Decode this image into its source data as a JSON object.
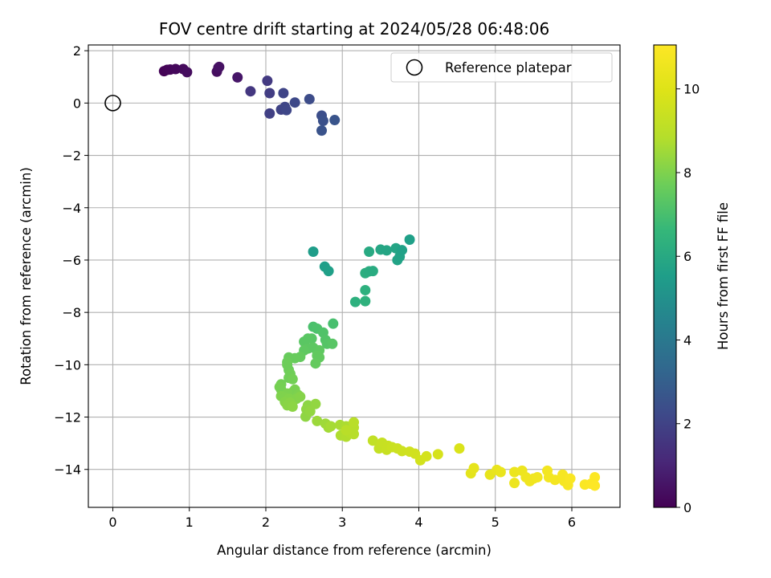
{
  "chart_data": {
    "type": "scatter",
    "title": "FOV centre drift starting at 2024/05/28 06:48:06",
    "xlabel": "Angular distance from reference (arcmin)",
    "ylabel": "Rotation from reference (arcmin)",
    "xlim": [
      -0.32,
      6.63
    ],
    "ylim": [
      -15.45,
      2.22
    ],
    "xticks": [
      0,
      1,
      2,
      3,
      4,
      5,
      6
    ],
    "xtick_labels": [
      "0",
      "1",
      "2",
      "3",
      "4",
      "5",
      "6"
    ],
    "yticks": [
      2,
      0,
      -2,
      -4,
      -6,
      -8,
      -10,
      -12,
      -14
    ],
    "ytick_labels": [
      "2",
      "0",
      "−2",
      "−4",
      "−6",
      "−8",
      "−10",
      "−12",
      "−14"
    ],
    "grid": true,
    "legend": {
      "position": "upper right",
      "entries": [
        "Reference platepar"
      ]
    },
    "colorbar": {
      "label": "Hours from first FF file",
      "colormap": "viridis",
      "range": [
        0,
        11.05
      ],
      "ticks": [
        0,
        2,
        4,
        6,
        8,
        10
      ],
      "tick_labels": [
        "0",
        "2",
        "4",
        "6",
        "8",
        "10"
      ]
    },
    "reference_point": {
      "x": 0,
      "y": 0,
      "label": "Reference platepar"
    },
    "points": [
      {
        "x": 0.67,
        "y": 1.22,
        "h": 0.05
      },
      {
        "x": 0.71,
        "y": 1.27,
        "h": 0.1
      },
      {
        "x": 0.75,
        "y": 1.28,
        "h": 0.15
      },
      {
        "x": 0.82,
        "y": 1.3,
        "h": 0.2
      },
      {
        "x": 0.92,
        "y": 1.3,
        "h": 0.25
      },
      {
        "x": 0.97,
        "y": 1.18,
        "h": 0.3
      },
      {
        "x": 1.36,
        "y": 1.2,
        "h": 0.35
      },
      {
        "x": 1.38,
        "y": 1.35,
        "h": 0.4
      },
      {
        "x": 1.39,
        "y": 1.38,
        "h": 0.45
      },
      {
        "x": 1.63,
        "y": 0.98,
        "h": 0.6
      },
      {
        "x": 1.8,
        "y": 0.45,
        "h": 1.6
      },
      {
        "x": 2.02,
        "y": 0.85,
        "h": 1.7
      },
      {
        "x": 2.05,
        "y": 0.38,
        "h": 1.8
      },
      {
        "x": 2.05,
        "y": -0.4,
        "h": 1.9
      },
      {
        "x": 2.2,
        "y": -0.25,
        "h": 2.0
      },
      {
        "x": 2.23,
        "y": 0.38,
        "h": 2.05
      },
      {
        "x": 2.25,
        "y": -0.15,
        "h": 2.1
      },
      {
        "x": 2.27,
        "y": -0.27,
        "h": 2.15
      },
      {
        "x": 2.38,
        "y": 0.02,
        "h": 2.2
      },
      {
        "x": 2.57,
        "y": 0.15,
        "h": 2.3
      },
      {
        "x": 2.73,
        "y": -0.48,
        "h": 2.4
      },
      {
        "x": 2.75,
        "y": -0.68,
        "h": 2.5
      },
      {
        "x": 2.73,
        "y": -1.05,
        "h": 2.55
      },
      {
        "x": 2.9,
        "y": -0.65,
        "h": 2.6
      },
      {
        "x": 2.62,
        "y": -5.68,
        "h": 5.5
      },
      {
        "x": 2.77,
        "y": -6.25,
        "h": 5.55
      },
      {
        "x": 2.82,
        "y": -6.42,
        "h": 5.6
      },
      {
        "x": 3.17,
        "y": -7.6,
        "h": 6.3
      },
      {
        "x": 3.3,
        "y": -7.57,
        "h": 6.35
      },
      {
        "x": 3.3,
        "y": -7.15,
        "h": 6.3
      },
      {
        "x": 3.3,
        "y": -6.5,
        "h": 6.2
      },
      {
        "x": 3.35,
        "y": -6.43,
        "h": 6.15
      },
      {
        "x": 3.4,
        "y": -6.42,
        "h": 6.1
      },
      {
        "x": 3.35,
        "y": -5.68,
        "h": 6.0
      },
      {
        "x": 3.5,
        "y": -5.6,
        "h": 5.9
      },
      {
        "x": 3.58,
        "y": -5.63,
        "h": 5.85
      },
      {
        "x": 3.7,
        "y": -5.55,
        "h": 5.8
      },
      {
        "x": 3.72,
        "y": -6.0,
        "h": 5.75
      },
      {
        "x": 3.75,
        "y": -5.87,
        "h": 5.7
      },
      {
        "x": 3.78,
        "y": -5.62,
        "h": 5.65
      },
      {
        "x": 3.88,
        "y": -5.22,
        "h": 5.6
      },
      {
        "x": 2.88,
        "y": -8.43,
        "h": 7.0
      },
      {
        "x": 2.62,
        "y": -8.55,
        "h": 7.05
      },
      {
        "x": 2.67,
        "y": -8.62,
        "h": 7.1
      },
      {
        "x": 2.75,
        "y": -8.77,
        "h": 7.15
      },
      {
        "x": 2.78,
        "y": -9.05,
        "h": 7.2
      },
      {
        "x": 2.8,
        "y": -9.2,
        "h": 7.25
      },
      {
        "x": 2.87,
        "y": -9.2,
        "h": 7.3
      },
      {
        "x": 2.6,
        "y": -9.0,
        "h": 7.3
      },
      {
        "x": 2.55,
        "y": -9.0,
        "h": 7.35
      },
      {
        "x": 2.5,
        "y": -9.12,
        "h": 7.35
      },
      {
        "x": 2.62,
        "y": -9.35,
        "h": 7.4
      },
      {
        "x": 2.55,
        "y": -9.38,
        "h": 7.4
      },
      {
        "x": 2.5,
        "y": -9.45,
        "h": 7.45
      },
      {
        "x": 2.7,
        "y": -9.45,
        "h": 7.45
      },
      {
        "x": 2.67,
        "y": -9.65,
        "h": 7.5
      },
      {
        "x": 2.7,
        "y": -9.72,
        "h": 7.5
      },
      {
        "x": 2.65,
        "y": -9.95,
        "h": 7.55
      },
      {
        "x": 2.45,
        "y": -9.7,
        "h": 7.55
      },
      {
        "x": 2.38,
        "y": -9.75,
        "h": 7.6
      },
      {
        "x": 2.3,
        "y": -9.72,
        "h": 7.6
      },
      {
        "x": 2.28,
        "y": -9.9,
        "h": 7.65
      },
      {
        "x": 2.28,
        "y": -10.0,
        "h": 7.7
      },
      {
        "x": 2.3,
        "y": -10.2,
        "h": 7.7
      },
      {
        "x": 2.32,
        "y": -10.35,
        "h": 7.75
      },
      {
        "x": 2.3,
        "y": -10.5,
        "h": 7.75
      },
      {
        "x": 2.35,
        "y": -10.55,
        "h": 7.8
      },
      {
        "x": 2.2,
        "y": -10.75,
        "h": 7.8
      },
      {
        "x": 2.18,
        "y": -10.85,
        "h": 7.85
      },
      {
        "x": 2.2,
        "y": -10.95,
        "h": 7.85
      },
      {
        "x": 2.38,
        "y": -10.95,
        "h": 7.9
      },
      {
        "x": 2.35,
        "y": -11.05,
        "h": 7.9
      },
      {
        "x": 2.28,
        "y": -11.1,
        "h": 7.95
      },
      {
        "x": 2.42,
        "y": -11.15,
        "h": 7.95
      },
      {
        "x": 2.2,
        "y": -11.2,
        "h": 8.0
      },
      {
        "x": 2.25,
        "y": -11.25,
        "h": 8.0
      },
      {
        "x": 2.3,
        "y": -11.3,
        "h": 8.05
      },
      {
        "x": 2.4,
        "y": -11.3,
        "h": 8.05
      },
      {
        "x": 2.45,
        "y": -11.22,
        "h": 8.1
      },
      {
        "x": 2.25,
        "y": -11.42,
        "h": 8.1
      },
      {
        "x": 2.32,
        "y": -11.45,
        "h": 8.15
      },
      {
        "x": 2.28,
        "y": -11.55,
        "h": 8.15
      },
      {
        "x": 2.35,
        "y": -11.6,
        "h": 8.2
      },
      {
        "x": 2.55,
        "y": -11.55,
        "h": 8.2
      },
      {
        "x": 2.53,
        "y": -11.7,
        "h": 8.25
      },
      {
        "x": 2.52,
        "y": -11.98,
        "h": 8.25
      },
      {
        "x": 2.58,
        "y": -11.78,
        "h": 8.3
      },
      {
        "x": 2.65,
        "y": -11.5,
        "h": 8.3
      },
      {
        "x": 2.67,
        "y": -12.15,
        "h": 8.45
      },
      {
        "x": 2.78,
        "y": -12.25,
        "h": 8.5
      },
      {
        "x": 2.82,
        "y": -12.4,
        "h": 8.55
      },
      {
        "x": 2.85,
        "y": -12.35,
        "h": 8.6
      },
      {
        "x": 2.97,
        "y": -12.3,
        "h": 8.65
      },
      {
        "x": 3.05,
        "y": -12.35,
        "h": 8.7
      },
      {
        "x": 2.98,
        "y": -12.7,
        "h": 8.75
      },
      {
        "x": 3.05,
        "y": -12.75,
        "h": 8.8
      },
      {
        "x": 3.1,
        "y": -12.6,
        "h": 8.85
      },
      {
        "x": 3.15,
        "y": -12.65,
        "h": 8.9
      },
      {
        "x": 3.15,
        "y": -12.4,
        "h": 8.9
      },
      {
        "x": 3.15,
        "y": -12.2,
        "h": 8.95
      },
      {
        "x": 3.05,
        "y": -12.5,
        "h": 8.95
      },
      {
        "x": 3.4,
        "y": -12.9,
        "h": 9.2
      },
      {
        "x": 3.48,
        "y": -13.2,
        "h": 9.25
      },
      {
        "x": 3.52,
        "y": -12.98,
        "h": 9.3
      },
      {
        "x": 3.6,
        "y": -13.1,
        "h": 9.35
      },
      {
        "x": 3.58,
        "y": -13.25,
        "h": 9.35
      },
      {
        "x": 3.65,
        "y": -13.15,
        "h": 9.4
      },
      {
        "x": 3.72,
        "y": -13.2,
        "h": 9.45
      },
      {
        "x": 3.78,
        "y": -13.3,
        "h": 9.5
      },
      {
        "x": 3.88,
        "y": -13.32,
        "h": 9.55
      },
      {
        "x": 3.95,
        "y": -13.4,
        "h": 9.6
      },
      {
        "x": 4.02,
        "y": -13.65,
        "h": 9.65
      },
      {
        "x": 4.1,
        "y": -13.5,
        "h": 9.7
      },
      {
        "x": 4.25,
        "y": -13.42,
        "h": 9.75
      },
      {
        "x": 4.53,
        "y": -13.2,
        "h": 9.85
      },
      {
        "x": 4.68,
        "y": -14.15,
        "h": 10.2
      },
      {
        "x": 4.72,
        "y": -13.95,
        "h": 10.25
      },
      {
        "x": 4.93,
        "y": -14.2,
        "h": 10.3
      },
      {
        "x": 5.02,
        "y": -14.02,
        "h": 10.35
      },
      {
        "x": 5.07,
        "y": -14.1,
        "h": 10.4
      },
      {
        "x": 5.25,
        "y": -14.1,
        "h": 10.45
      },
      {
        "x": 5.25,
        "y": -14.52,
        "h": 10.5
      },
      {
        "x": 5.35,
        "y": -14.05,
        "h": 10.5
      },
      {
        "x": 5.4,
        "y": -14.3,
        "h": 10.55
      },
      {
        "x": 5.45,
        "y": -14.45,
        "h": 10.6
      },
      {
        "x": 5.5,
        "y": -14.35,
        "h": 10.6
      },
      {
        "x": 5.55,
        "y": -14.3,
        "h": 10.65
      },
      {
        "x": 5.68,
        "y": -14.05,
        "h": 10.7
      },
      {
        "x": 5.7,
        "y": -14.3,
        "h": 10.7
      },
      {
        "x": 5.78,
        "y": -14.4,
        "h": 10.75
      },
      {
        "x": 5.88,
        "y": -14.2,
        "h": 10.8
      },
      {
        "x": 5.9,
        "y": -14.45,
        "h": 10.8
      },
      {
        "x": 5.95,
        "y": -14.6,
        "h": 10.85
      },
      {
        "x": 5.98,
        "y": -14.35,
        "h": 10.9
      },
      {
        "x": 6.17,
        "y": -14.58,
        "h": 10.95
      },
      {
        "x": 6.25,
        "y": -14.55,
        "h": 11.0
      },
      {
        "x": 6.3,
        "y": -14.3,
        "h": 11.0
      },
      {
        "x": 6.3,
        "y": -14.62,
        "h": 11.05
      }
    ]
  }
}
